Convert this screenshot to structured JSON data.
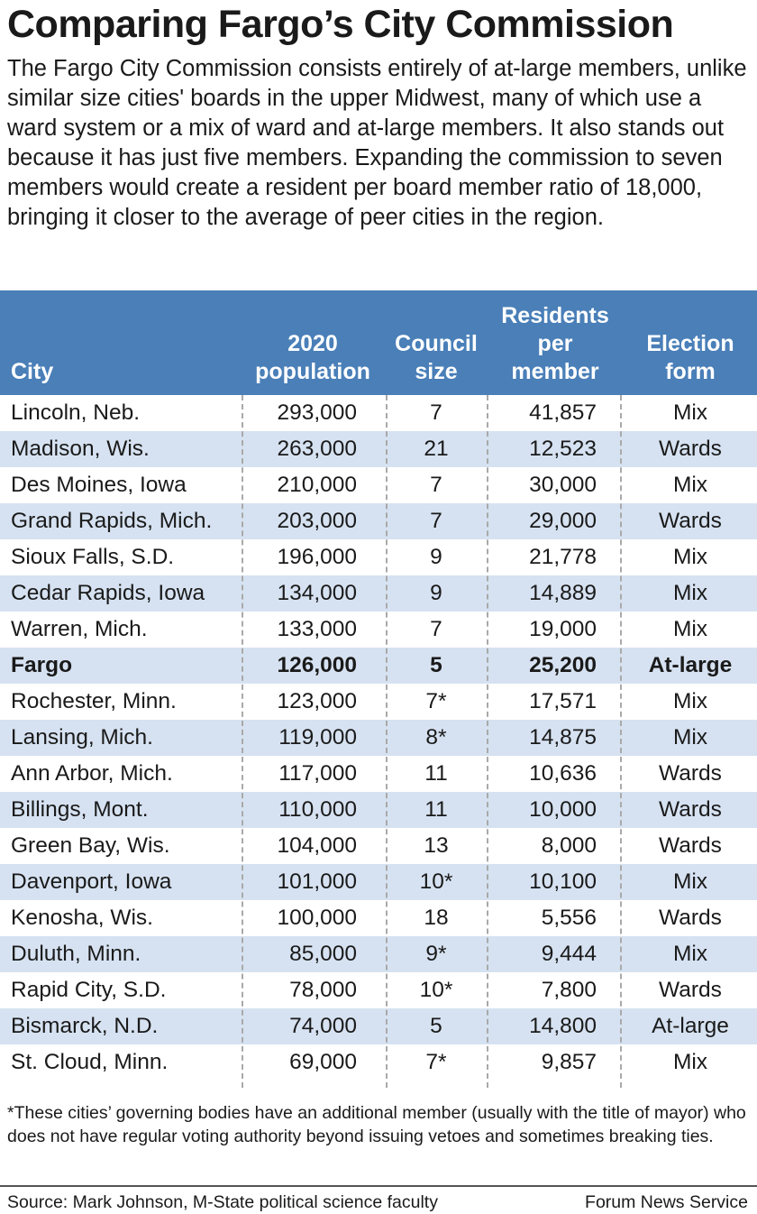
{
  "title": "Comparing Fargo’s City Commission",
  "intro": "The Fargo City Commission consists entirely of at-large members, unlike similar size cities' boards in the upper Midwest, many of which use a ward system or a mix of ward and at-large members. It also stands out because it has just five members. Expanding the commission to seven members would create a resident per board member ratio of 18,000, bringing it closer to the average of peer cities in the region.",
  "chart_data": {
    "type": "table",
    "columns": [
      "City",
      "2020 population",
      "Council size",
      "Residents per member",
      "Election form"
    ],
    "highlight_color": "#4a7fb8",
    "alt_row_color": "#d6e2f1",
    "rows": [
      [
        "Lincoln, Neb.",
        "293,000",
        "7",
        "41,857",
        "Mix"
      ],
      [
        "Madison, Wis.",
        "263,000",
        "21",
        "12,523",
        "Wards"
      ],
      [
        "Des Moines, Iowa",
        "210,000",
        "7",
        "30,000",
        "Mix"
      ],
      [
        "Grand Rapids, Mich.",
        "203,000",
        "7",
        "29,000",
        "Wards"
      ],
      [
        "Sioux Falls, S.D.",
        "196,000",
        "9",
        "21,778",
        "Mix"
      ],
      [
        "Cedar Rapids, Iowa",
        "134,000",
        "9",
        "14,889",
        "Mix"
      ],
      [
        "Warren, Mich.",
        "133,000",
        "7",
        "19,000",
        "Mix"
      ],
      [
        "Fargo",
        "126,000",
        "5",
        "25,200",
        "At-large"
      ],
      [
        "Rochester, Minn.",
        "123,000",
        "7*",
        "17,571",
        "Mix"
      ],
      [
        "Lansing, Mich.",
        "119,000",
        "8*",
        "14,875",
        "Mix"
      ],
      [
        "Ann Arbor, Mich.",
        "117,000",
        "11",
        "10,636",
        "Wards"
      ],
      [
        "Billings, Mont.",
        "110,000",
        "11",
        "10,000",
        "Wards"
      ],
      [
        "Green Bay, Wis.",
        "104,000",
        "13",
        "8,000",
        "Wards"
      ],
      [
        "Davenport, Iowa",
        "101,000",
        "10*",
        "10,100",
        "Mix"
      ],
      [
        "Kenosha, Wis.",
        "100,000",
        "18",
        "5,556",
        "Wards"
      ],
      [
        "Duluth, Minn.",
        "85,000",
        "9*",
        "9,444",
        "Mix"
      ],
      [
        "Rapid City, S.D.",
        "78,000",
        "10*",
        "7,800",
        "Wards"
      ],
      [
        "Bismarck, N.D.",
        "74,000",
        "5",
        "14,800",
        "At-large"
      ],
      [
        "St. Cloud, Minn.",
        "69,000",
        "7*",
        "9,857",
        "Mix"
      ]
    ],
    "bold_row": "Fargo"
  },
  "header": {
    "city": "City",
    "pop": [
      "2020",
      "population"
    ],
    "size": [
      "Council",
      "size"
    ],
    "res": [
      "Residents",
      "per",
      "member"
    ],
    "form": [
      "Election",
      "form"
    ]
  },
  "footnote": "*These cities’ governing bodies have an additional member (usually with the title of mayor) who does not have regular voting authority beyond issuing vetoes and sometimes breaking ties.",
  "source": "Source: Mark Johnson, M-State political science faculty",
  "credit": "Forum News Service"
}
